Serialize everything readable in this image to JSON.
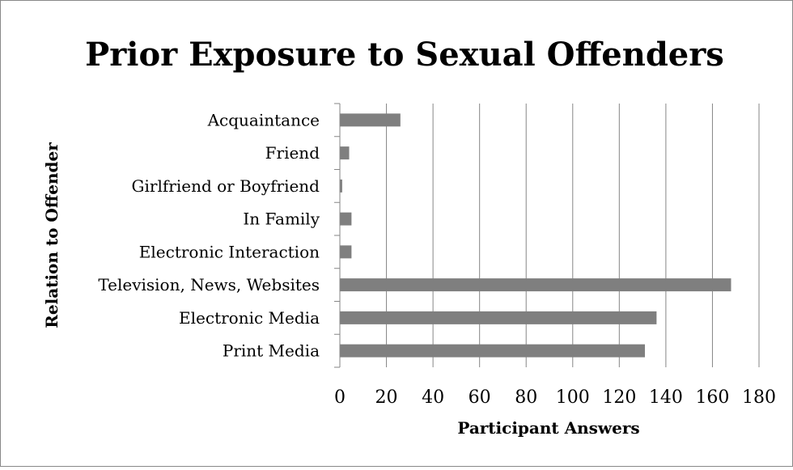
{
  "chart_data": {
    "type": "bar",
    "orientation": "horizontal",
    "title": "Prior Exposure to Sexual Offenders",
    "xlabel": "Participant Answers",
    "ylabel": "Relation to Offender",
    "categories": [
      "Acquaintance",
      "Friend",
      "Girlfriend or Boyfriend",
      "In Family",
      "Electronic Interaction",
      "Television, News, Websites",
      "Electronic Media",
      "Print Media"
    ],
    "values": [
      26,
      4,
      1,
      5,
      5,
      168,
      136,
      131
    ],
    "xlim": [
      0,
      180
    ],
    "xticks": [
      0,
      20,
      40,
      60,
      80,
      100,
      120,
      140,
      160,
      180
    ],
    "grid": "vertical",
    "legend": "none",
    "colors": {
      "bar": "#7f7f7f",
      "grid": "#868686",
      "axis": "#868686"
    }
  }
}
